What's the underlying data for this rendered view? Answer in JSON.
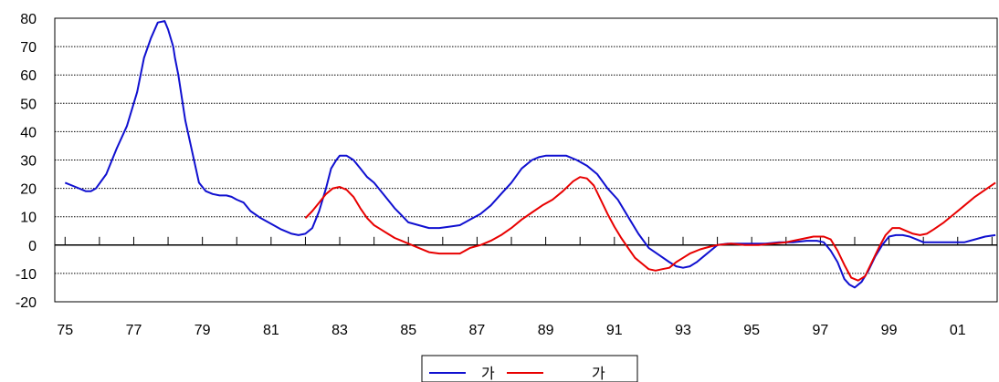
{
  "chart_data": {
    "type": "line",
    "title": "",
    "xlabel": "",
    "ylabel": "",
    "xlim": [
      1974.7,
      2002.15
    ],
    "ylim": [
      -20,
      80
    ],
    "y_ticks": [
      80,
      70,
      60,
      50,
      40,
      30,
      20,
      10,
      0,
      -10,
      -20
    ],
    "x_tick_labels": [
      {
        "x": 1975,
        "label": "75"
      },
      {
        "x": 1977,
        "label": "77"
      },
      {
        "x": 1979,
        "label": "79"
      },
      {
        "x": 1981,
        "label": "81"
      },
      {
        "x": 1983,
        "label": "83"
      },
      {
        "x": 1985,
        "label": "85"
      },
      {
        "x": 1987,
        "label": "87"
      },
      {
        "x": 1989,
        "label": "89"
      },
      {
        "x": 1991,
        "label": "91"
      },
      {
        "x": 1993,
        "label": "93"
      },
      {
        "x": 1995,
        "label": "95"
      },
      {
        "x": 1997,
        "label": "97"
      },
      {
        "x": 1999,
        "label": "99"
      },
      {
        "x": 2001,
        "label": "01"
      }
    ],
    "grid": "horizontal dotted",
    "legend_position": "bottom-center",
    "series": [
      {
        "name": "가",
        "color": "#1010d0",
        "points": [
          [
            1975.0,
            22
          ],
          [
            1975.3,
            20.5
          ],
          [
            1975.6,
            19
          ],
          [
            1975.75,
            19
          ],
          [
            1975.9,
            20
          ],
          [
            1976.2,
            25
          ],
          [
            1976.5,
            34
          ],
          [
            1976.8,
            42
          ],
          [
            1977.1,
            54
          ],
          [
            1977.3,
            66
          ],
          [
            1977.5,
            73
          ],
          [
            1977.7,
            78.5
          ],
          [
            1977.9,
            79
          ],
          [
            1978.0,
            76
          ],
          [
            1978.15,
            70
          ],
          [
            1978.2,
            66
          ],
          [
            1978.3,
            60
          ],
          [
            1978.5,
            44
          ],
          [
            1978.7,
            33
          ],
          [
            1978.9,
            22
          ],
          [
            1979.1,
            19
          ],
          [
            1979.3,
            18
          ],
          [
            1979.5,
            17.5
          ],
          [
            1979.7,
            17.5
          ],
          [
            1979.85,
            17
          ],
          [
            1980.0,
            16
          ],
          [
            1980.2,
            15
          ],
          [
            1980.4,
            12
          ],
          [
            1980.7,
            9.5
          ],
          [
            1981.0,
            7.5
          ],
          [
            1981.3,
            5.5
          ],
          [
            1981.6,
            4
          ],
          [
            1981.8,
            3.5
          ],
          [
            1982.0,
            4
          ],
          [
            1982.2,
            6
          ],
          [
            1982.4,
            12
          ],
          [
            1982.6,
            20
          ],
          [
            1982.75,
            27
          ],
          [
            1982.9,
            30
          ],
          [
            1983.0,
            31.5
          ],
          [
            1983.2,
            31.5
          ],
          [
            1983.4,
            30
          ],
          [
            1983.6,
            27
          ],
          [
            1983.8,
            24
          ],
          [
            1984.0,
            22
          ],
          [
            1984.2,
            19
          ],
          [
            1984.4,
            16
          ],
          [
            1984.6,
            13
          ],
          [
            1984.8,
            10.5
          ],
          [
            1985.0,
            8
          ],
          [
            1985.3,
            7
          ],
          [
            1985.6,
            6
          ],
          [
            1985.9,
            6
          ],
          [
            1986.2,
            6.5
          ],
          [
            1986.5,
            7
          ],
          [
            1986.8,
            9
          ],
          [
            1987.1,
            11
          ],
          [
            1987.4,
            14
          ],
          [
            1987.7,
            18
          ],
          [
            1988.0,
            22
          ],
          [
            1988.3,
            27
          ],
          [
            1988.6,
            30
          ],
          [
            1988.8,
            31
          ],
          [
            1989.0,
            31.5
          ],
          [
            1989.3,
            31.5
          ],
          [
            1989.6,
            31.5
          ],
          [
            1989.9,
            30
          ],
          [
            1990.2,
            28
          ],
          [
            1990.5,
            25
          ],
          [
            1990.8,
            20
          ],
          [
            1991.1,
            16
          ],
          [
            1991.4,
            10
          ],
          [
            1991.7,
            4
          ],
          [
            1992.0,
            -1
          ],
          [
            1992.3,
            -3.5
          ],
          [
            1992.6,
            -6
          ],
          [
            1992.8,
            -7.5
          ],
          [
            1993.0,
            -8
          ],
          [
            1993.2,
            -7.5
          ],
          [
            1993.4,
            -6
          ],
          [
            1993.6,
            -4
          ],
          [
            1993.8,
            -2
          ],
          [
            1994.0,
            0
          ],
          [
            1994.3,
            0.5
          ],
          [
            1994.6,
            0.5
          ],
          [
            1995.0,
            0.5
          ],
          [
            1995.4,
            0.5
          ],
          [
            1995.8,
            1
          ],
          [
            1996.2,
            1
          ],
          [
            1996.6,
            1.5
          ],
          [
            1996.9,
            1.5
          ],
          [
            1997.1,
            1
          ],
          [
            1997.3,
            -2
          ],
          [
            1997.5,
            -6
          ],
          [
            1997.7,
            -12
          ],
          [
            1997.85,
            -14
          ],
          [
            1998.0,
            -15
          ],
          [
            1998.2,
            -13
          ],
          [
            1998.4,
            -9
          ],
          [
            1998.6,
            -4
          ],
          [
            1998.8,
            0
          ],
          [
            1999.0,
            3
          ],
          [
            1999.2,
            3.5
          ],
          [
            1999.4,
            3.5
          ],
          [
            1999.6,
            3
          ],
          [
            1999.8,
            2
          ],
          [
            2000.0,
            1
          ],
          [
            2000.4,
            1
          ],
          [
            2000.8,
            1
          ],
          [
            2001.2,
            1
          ],
          [
            2001.5,
            2
          ],
          [
            2001.8,
            3
          ],
          [
            2002.1,
            3.5
          ]
        ]
      },
      {
        "name": "가",
        "color": "#e80000",
        "points": [
          [
            1982.0,
            9.5
          ],
          [
            1982.2,
            12
          ],
          [
            1982.4,
            15
          ],
          [
            1982.6,
            18
          ],
          [
            1982.8,
            20
          ],
          [
            1983.0,
            20.5
          ],
          [
            1983.2,
            19.5
          ],
          [
            1983.4,
            17
          ],
          [
            1983.6,
            13
          ],
          [
            1983.8,
            9.5
          ],
          [
            1984.0,
            7
          ],
          [
            1984.2,
            5.5
          ],
          [
            1984.4,
            4
          ],
          [
            1984.6,
            2.5
          ],
          [
            1984.8,
            1.5
          ],
          [
            1985.0,
            0.5
          ],
          [
            1985.3,
            -1
          ],
          [
            1985.6,
            -2.5
          ],
          [
            1985.9,
            -3
          ],
          [
            1986.2,
            -3
          ],
          [
            1986.5,
            -3
          ],
          [
            1986.8,
            -1
          ],
          [
            1987.1,
            0
          ],
          [
            1987.4,
            1.5
          ],
          [
            1987.7,
            3.5
          ],
          [
            1988.0,
            6
          ],
          [
            1988.3,
            9
          ],
          [
            1988.6,
            11.5
          ],
          [
            1988.9,
            14
          ],
          [
            1989.2,
            16
          ],
          [
            1989.5,
            19
          ],
          [
            1989.8,
            22.5
          ],
          [
            1990.0,
            24
          ],
          [
            1990.2,
            23.5
          ],
          [
            1990.4,
            21
          ],
          [
            1990.6,
            16
          ],
          [
            1990.8,
            11
          ],
          [
            1991.0,
            6.5
          ],
          [
            1991.2,
            2.5
          ],
          [
            1991.4,
            -1
          ],
          [
            1991.6,
            -4.5
          ],
          [
            1991.8,
            -6.5
          ],
          [
            1992.0,
            -8.5
          ],
          [
            1992.2,
            -9
          ],
          [
            1992.4,
            -8.5
          ],
          [
            1992.6,
            -8
          ],
          [
            1992.8,
            -6
          ],
          [
            1993.0,
            -4.5
          ],
          [
            1993.2,
            -3
          ],
          [
            1993.5,
            -1.5
          ],
          [
            1993.8,
            -0.5
          ],
          [
            1994.0,
            0
          ],
          [
            1994.4,
            0.5
          ],
          [
            1994.8,
            0
          ],
          [
            1995.2,
            0
          ],
          [
            1995.6,
            0.5
          ],
          [
            1996.0,
            1
          ],
          [
            1996.4,
            2
          ],
          [
            1996.8,
            3
          ],
          [
            1997.1,
            3
          ],
          [
            1997.3,
            2
          ],
          [
            1997.5,
            -2
          ],
          [
            1997.7,
            -7
          ],
          [
            1997.9,
            -11.5
          ],
          [
            1998.1,
            -12.5
          ],
          [
            1998.3,
            -11
          ],
          [
            1998.5,
            -6
          ],
          [
            1998.7,
            -1
          ],
          [
            1998.9,
            3.5
          ],
          [
            1999.1,
            6
          ],
          [
            1999.3,
            6
          ],
          [
            1999.5,
            5
          ],
          [
            1999.7,
            4
          ],
          [
            1999.9,
            3.5
          ],
          [
            2000.1,
            4
          ],
          [
            2000.3,
            5.5
          ],
          [
            2000.6,
            8
          ],
          [
            2000.9,
            11
          ],
          [
            2001.2,
            14
          ],
          [
            2001.5,
            17
          ],
          [
            2001.8,
            19.5
          ],
          [
            2002.1,
            22
          ]
        ]
      }
    ]
  }
}
